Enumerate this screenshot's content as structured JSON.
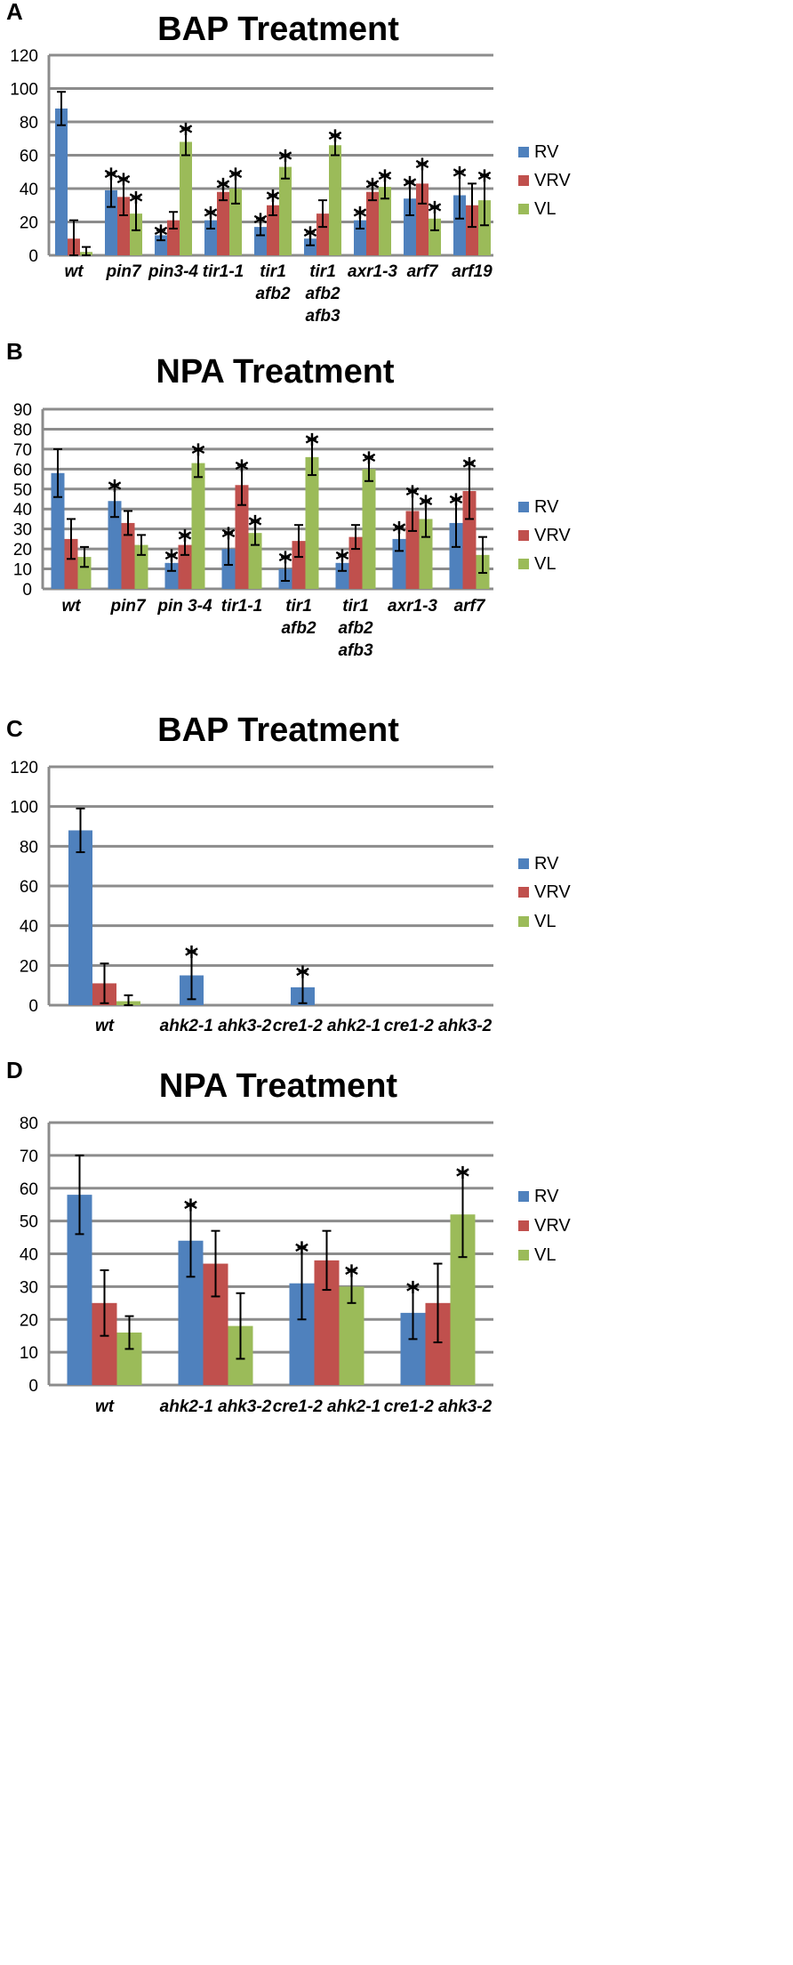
{
  "series_colors": {
    "RV": "#4f81bd",
    "VRV": "#c0504d",
    "VL": "#9bbb59"
  },
  "chart_data": [
    {
      "panel": "A",
      "type": "bar",
      "title": "BAP Treatment",
      "ylim": [
        0,
        120
      ],
      "yticks": [
        "0",
        "20",
        "40",
        "60",
        "80",
        "100",
        "120"
      ],
      "categories": [
        [
          "wt"
        ],
        [
          "pin7"
        ],
        [
          "pin3-4"
        ],
        [
          "tir1-1"
        ],
        [
          "tir1",
          "afb2"
        ],
        [
          "tir1",
          "afb2",
          "afb3"
        ],
        [
          "axr1-3"
        ],
        [
          "arf7"
        ],
        [
          "arf19"
        ]
      ],
      "series": [
        {
          "name": "RV",
          "values": [
            88,
            39,
            12,
            21,
            17,
            10,
            21,
            34,
            36
          ],
          "errors": [
            10,
            10,
            3,
            5,
            5,
            4,
            5,
            10,
            14
          ],
          "sig": [
            false,
            true,
            true,
            true,
            true,
            true,
            true,
            true,
            true
          ]
        },
        {
          "name": "VRV",
          "values": [
            10,
            35,
            21,
            38,
            30,
            25,
            38,
            43,
            30
          ],
          "errors": [
            11,
            11,
            5,
            5,
            6,
            8,
            5,
            12,
            13
          ],
          "sig": [
            false,
            true,
            false,
            true,
            true,
            false,
            true,
            true,
            false
          ]
        },
        {
          "name": "VL",
          "values": [
            2,
            25,
            68,
            40,
            53,
            66,
            41,
            22,
            33
          ],
          "errors": [
            3,
            10,
            8,
            9,
            7,
            6,
            7,
            7,
            15
          ],
          "sig": [
            false,
            true,
            true,
            true,
            true,
            true,
            true,
            true,
            true
          ]
        }
      ],
      "legend": [
        "RV",
        "VRV",
        "VL"
      ],
      "legend_position": "right"
    },
    {
      "panel": "B",
      "type": "bar",
      "title": "NPA Treatment",
      "ylim": [
        0,
        90
      ],
      "yticks": [
        "0",
        "10",
        "20",
        "30",
        "40",
        "50",
        "60",
        "70",
        "80",
        "90"
      ],
      "categories": [
        [
          "wt"
        ],
        [
          "pin7"
        ],
        [
          "pin 3-4"
        ],
        [
          "tir1-1"
        ],
        [
          "tir1",
          "afb2"
        ],
        [
          "tir1",
          "afb2",
          "afb3"
        ],
        [
          "axr1-3"
        ],
        [
          "arf7"
        ]
      ],
      "series": [
        {
          "name": "RV",
          "values": [
            58,
            44,
            13,
            20,
            10,
            13,
            25,
            33
          ],
          "errors": [
            12,
            8,
            4,
            8,
            6,
            4,
            6,
            12
          ],
          "sig": [
            false,
            true,
            true,
            true,
            true,
            true,
            true,
            true
          ]
        },
        {
          "name": "VRV",
          "values": [
            25,
            33,
            22,
            52,
            24,
            26,
            39,
            49
          ],
          "errors": [
            10,
            6,
            5,
            10,
            8,
            6,
            10,
            14
          ],
          "sig": [
            false,
            false,
            true,
            true,
            false,
            false,
            true,
            true
          ]
        },
        {
          "name": "VL",
          "values": [
            16,
            22,
            63,
            28,
            66,
            60,
            35,
            17
          ],
          "errors": [
            5,
            5,
            7,
            6,
            9,
            6,
            9,
            9
          ],
          "sig": [
            false,
            false,
            true,
            true,
            true,
            true,
            true,
            false
          ]
        }
      ],
      "legend": [
        "RV",
        "VRV",
        "VL"
      ],
      "legend_position": "right"
    },
    {
      "panel": "C",
      "type": "bar",
      "title": "BAP Treatment",
      "ylim": [
        0,
        120
      ],
      "yticks": [
        "0",
        "20",
        "40",
        "60",
        "80",
        "100",
        "120"
      ],
      "categories": [
        [
          "wt"
        ],
        [
          "ahk2-1 ahk3-2"
        ],
        [
          "cre1-2 ahk2-1"
        ],
        [
          "cre1-2 ahk3-2"
        ]
      ],
      "series": [
        {
          "name": "RV",
          "values": [
            88,
            15,
            9,
            0
          ],
          "errors": [
            11,
            12,
            8,
            0
          ],
          "sig": [
            false,
            true,
            true,
            false
          ]
        },
        {
          "name": "VRV",
          "values": [
            11,
            0,
            0,
            0
          ],
          "errors": [
            10,
            0,
            0,
            0
          ],
          "sig": [
            false,
            false,
            false,
            false
          ]
        },
        {
          "name": "VL",
          "values": [
            2,
            0,
            0,
            0
          ],
          "errors": [
            3,
            0,
            0,
            0
          ],
          "sig": [
            false,
            false,
            false,
            false
          ]
        }
      ],
      "legend": [
        "RV",
        "VRV",
        "VL"
      ],
      "legend_position": "right"
    },
    {
      "panel": "D",
      "type": "bar",
      "title": "NPA Treatment",
      "ylim": [
        0,
        80
      ],
      "yticks": [
        "0",
        "10",
        "20",
        "30",
        "40",
        "50",
        "60",
        "70",
        "80"
      ],
      "categories": [
        [
          "wt"
        ],
        [
          "ahk2-1 ahk3-2"
        ],
        [
          "cre1-2 ahk2-1"
        ],
        [
          "cre1-2 ahk3-2"
        ]
      ],
      "series": [
        {
          "name": "RV",
          "values": [
            58,
            44,
            31,
            22
          ],
          "errors": [
            12,
            11,
            11,
            8
          ],
          "sig": [
            false,
            true,
            true,
            true
          ]
        },
        {
          "name": "VRV",
          "values": [
            25,
            37,
            38,
            25
          ],
          "errors": [
            10,
            10,
            9,
            12
          ],
          "sig": [
            false,
            false,
            false,
            false
          ]
        },
        {
          "name": "VL",
          "values": [
            16,
            18,
            30,
            52
          ],
          "errors": [
            5,
            10,
            5,
            13
          ],
          "sig": [
            false,
            false,
            true,
            true
          ]
        }
      ],
      "legend": [
        "RV",
        "VRV",
        "VL"
      ],
      "legend_position": "right"
    }
  ],
  "significance_marker": "*"
}
